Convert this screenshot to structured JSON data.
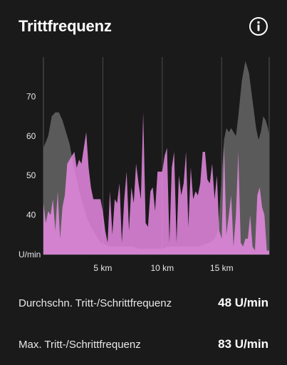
{
  "header": {
    "title": "Trittfrequenz",
    "info_icon": "info-circle-icon"
  },
  "chart_data": {
    "type": "area",
    "title": "Trittfrequenz",
    "xlabel": "",
    "ylabel": "U/min",
    "xlim": [
      0,
      19
    ],
    "ylim": [
      30,
      80
    ],
    "x_ticks": [
      5,
      10,
      15
    ],
    "x_tick_labels": [
      "5 km",
      "10 km",
      "15 km"
    ],
    "y_ticks": [
      40,
      50,
      60,
      70
    ],
    "y_tick_labels": [
      "40",
      "50",
      "60",
      "70"
    ],
    "y_unit_label": "U/min",
    "grid": "vertical",
    "series": [
      {
        "color": "#5a5a5a",
        "x": [
          0,
          0.4,
          0.7,
          1.0,
          1.3,
          1.6,
          1.9,
          2.2,
          2.5,
          2.8,
          3.1,
          3.4,
          3.7,
          4.0,
          4.4,
          4.8,
          5.2,
          5.6,
          6.0,
          6.5,
          7.0,
          7.5,
          8.0,
          8.5,
          9.0,
          9.5,
          10.0,
          10.5,
          11.0,
          11.5,
          12.0,
          12.5,
          13.0,
          13.5,
          14.0,
          14.4,
          14.7,
          15.0,
          15.2,
          15.4,
          15.6,
          15.8,
          16.0,
          16.2,
          16.4,
          16.7,
          17.0,
          17.3,
          17.6,
          17.9,
          18.1,
          18.3,
          18.5,
          18.7,
          18.9,
          19.0
        ],
        "values": [
          57,
          60,
          65,
          66,
          66,
          64,
          61,
          58,
          53,
          49,
          45,
          42,
          39,
          37,
          35,
          33,
          32.5,
          32,
          32,
          32,
          32,
          32,
          31.5,
          31.5,
          31.5,
          31.5,
          31.5,
          32,
          32,
          32,
          32,
          32,
          32,
          32.5,
          33,
          34,
          36,
          50,
          59,
          62,
          61,
          62,
          61,
          60,
          65,
          74,
          79,
          76,
          69,
          62,
          59,
          61,
          65,
          64,
          62,
          60
        ]
      },
      {
        "color": "#e78ae3",
        "x": [
          0,
          0.2,
          0.4,
          0.6,
          0.8,
          1.0,
          1.2,
          1.4,
          1.6,
          1.8,
          2.0,
          2.2,
          2.4,
          2.6,
          2.8,
          3.0,
          3.2,
          3.4,
          3.6,
          3.8,
          4.0,
          4.2,
          4.4,
          4.6,
          4.8,
          5.0,
          5.2,
          5.4,
          5.6,
          5.8,
          6.0,
          6.2,
          6.4,
          6.6,
          6.8,
          7.0,
          7.2,
          7.4,
          7.6,
          7.8,
          8.0,
          8.2,
          8.4,
          8.6,
          8.8,
          9.0,
          9.2,
          9.4,
          9.6,
          9.8,
          10.0,
          10.2,
          10.4,
          10.6,
          10.8,
          11.0,
          11.2,
          11.4,
          11.6,
          11.8,
          12.0,
          12.2,
          12.4,
          12.6,
          12.8,
          13.0,
          13.2,
          13.4,
          13.6,
          13.8,
          14.0,
          14.2,
          14.4,
          14.6,
          14.8,
          15.0,
          15.2,
          15.4,
          15.6,
          15.8,
          16.0,
          16.2,
          16.4,
          16.6,
          16.8,
          17.0,
          17.2,
          17.4,
          17.6,
          17.8,
          18.0,
          18.2,
          18.4,
          18.6,
          18.8,
          19.0
        ],
        "values": [
          43,
          38,
          41,
          40,
          44,
          36,
          46,
          34,
          42,
          45,
          53,
          54,
          55,
          56,
          52,
          54,
          53,
          57,
          61,
          52,
          47,
          44,
          44,
          44,
          44,
          41,
          36,
          33,
          46,
          35,
          44,
          43,
          48,
          33,
          44,
          51,
          36,
          47,
          43,
          53,
          48,
          44,
          66,
          38,
          37,
          46,
          47,
          41,
          51,
          51,
          51,
          55,
          57,
          33,
          52,
          56,
          33,
          50,
          45,
          48,
          56,
          37,
          52,
          44,
          46,
          45,
          48,
          56,
          56,
          49,
          48,
          53,
          44,
          50,
          36,
          34,
          58,
          35,
          40,
          45,
          32,
          40,
          56,
          33,
          32,
          34,
          34,
          40,
          32,
          31,
          45,
          47,
          42,
          40,
          31,
          31
        ]
      }
    ]
  },
  "stats": [
    {
      "label": "Durchschn. Tritt-/Schrittfrequenz",
      "value": "48 U/min"
    },
    {
      "label": "Max. Tritt-/Schrittfrequenz",
      "value": "83 U/min"
    }
  ]
}
